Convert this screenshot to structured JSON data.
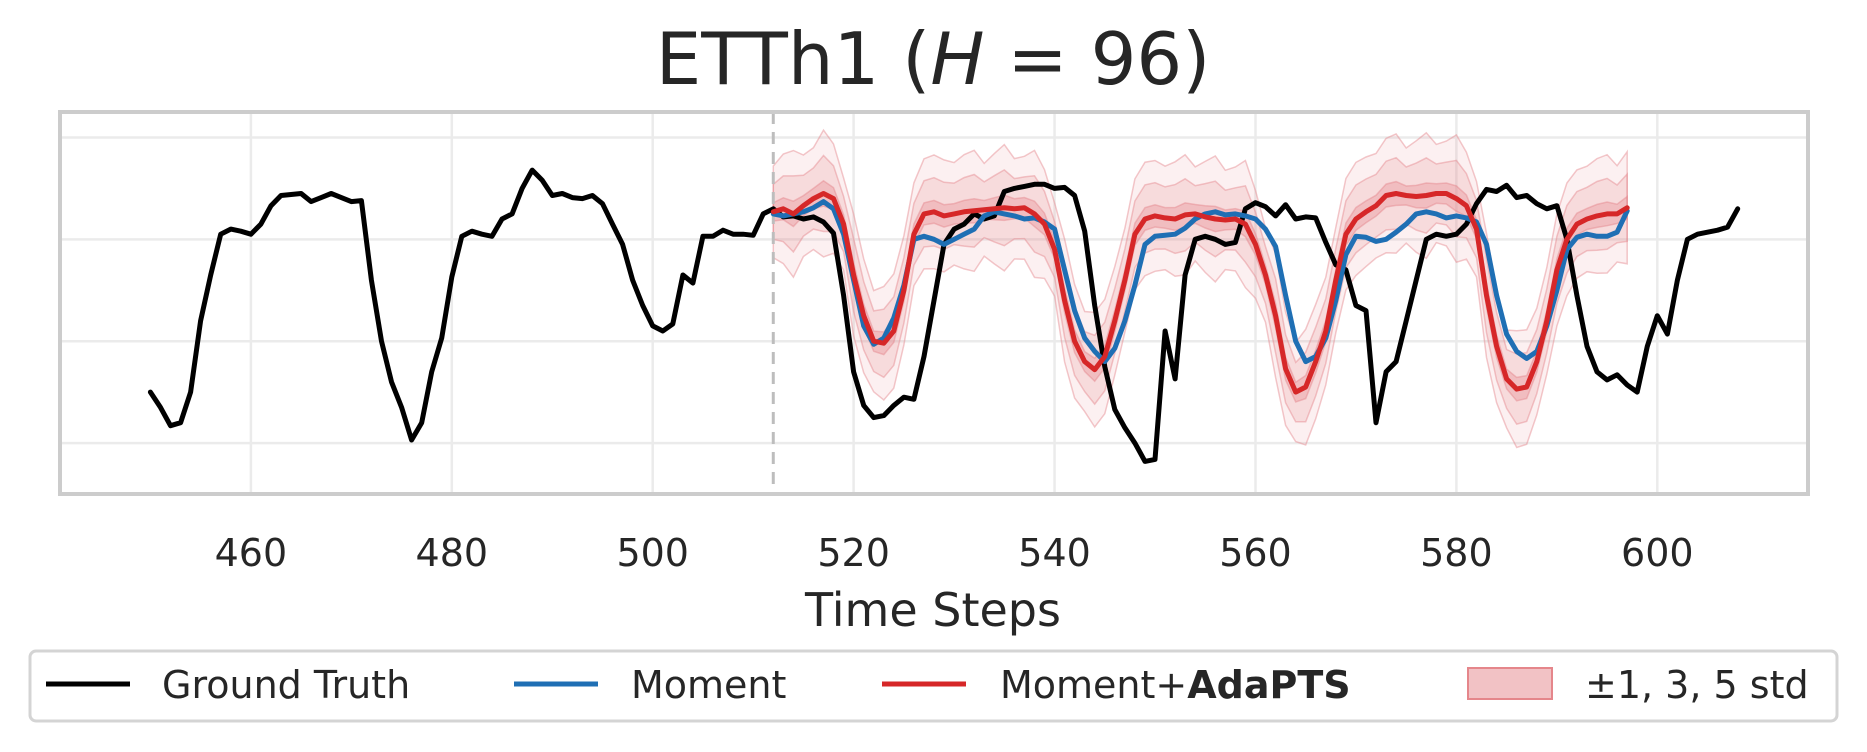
{
  "chart_data": {
    "type": "line",
    "title": "ETTh1 (H = 96)",
    "title_parts": {
      "prefix": "ETTh1 (",
      "var": "H",
      "suffix": " = 96)"
    },
    "xlabel": "Time Steps",
    "ylabel": "",
    "xlim": [
      441,
      615
    ],
    "ylim": [
      -0.15,
      3.6
    ],
    "xticks": [
      460,
      480,
      500,
      520,
      540,
      560,
      580,
      600
    ],
    "y_gridlines": [
      0.35,
      1.35,
      2.35,
      3.35
    ],
    "grid": true,
    "forecast_start": 512,
    "colors": {
      "ground_truth": "#000000",
      "moment": "#1f6fb4",
      "adapts": "#d62728",
      "band": "#e5868b",
      "grid": "#ebebeb",
      "frame": "#cccccc",
      "divider": "#bdbdbd"
    },
    "series": [
      {
        "name": "Ground Truth",
        "x_start": 450,
        "values": [
          0.85,
          0.7,
          0.52,
          0.55,
          0.85,
          1.55,
          2.0,
          2.4,
          2.45,
          2.43,
          2.4,
          2.5,
          2.68,
          2.78,
          2.79,
          2.8,
          2.72,
          2.76,
          2.8,
          2.76,
          2.72,
          2.73,
          1.95,
          1.35,
          0.95,
          0.7,
          0.38,
          0.55,
          1.05,
          1.38,
          1.98,
          2.38,
          2.43,
          2.4,
          2.38,
          2.55,
          2.6,
          2.85,
          3.03,
          2.93,
          2.78,
          2.8,
          2.76,
          2.75,
          2.78,
          2.7,
          2.5,
          2.3,
          1.95,
          1.7,
          1.5,
          1.45,
          1.52,
          2.0,
          1.92,
          2.38,
          2.38,
          2.44,
          2.4,
          2.4,
          2.39,
          2.6,
          2.65,
          2.57,
          2.58,
          2.55,
          2.57,
          2.52,
          2.41,
          1.8,
          1.05,
          0.72,
          0.6,
          0.62,
          0.72,
          0.8,
          0.78,
          1.2,
          1.75,
          2.3,
          2.45,
          2.5,
          2.6,
          2.55,
          2.58,
          2.82,
          2.85,
          2.87,
          2.89,
          2.89,
          2.85,
          2.86,
          2.78,
          2.43,
          1.7,
          1.1,
          0.68,
          0.5,
          0.35,
          0.17,
          0.19,
          1.45,
          0.98,
          2.0,
          2.35,
          2.38,
          2.35,
          2.3,
          2.32,
          2.65,
          2.71,
          2.67,
          2.58,
          2.69,
          2.55,
          2.57,
          2.56,
          2.32,
          2.1,
          2.05,
          1.7,
          1.65,
          0.55,
          1.05,
          1.15,
          1.55,
          1.95,
          2.35,
          2.4,
          2.38,
          2.4,
          2.5,
          2.7,
          2.84,
          2.82,
          2.88,
          2.76,
          2.78,
          2.7,
          2.65,
          2.68,
          2.35,
          1.8,
          1.3,
          1.05,
          0.97,
          1.02,
          0.92,
          0.85,
          1.3,
          1.6,
          1.42,
          1.95,
          2.35,
          2.4,
          2.42,
          2.44,
          2.47,
          2.65
        ]
      },
      {
        "name": "Moment",
        "x_start": 512,
        "values": [
          2.6,
          2.58,
          2.6,
          2.62,
          2.66,
          2.72,
          2.65,
          2.4,
          1.95,
          1.5,
          1.32,
          1.38,
          1.58,
          1.9,
          2.35,
          2.38,
          2.35,
          2.3,
          2.35,
          2.4,
          2.45,
          2.58,
          2.62,
          2.6,
          2.58,
          2.55,
          2.56,
          2.52,
          2.45,
          2.05,
          1.65,
          1.38,
          1.25,
          1.15,
          1.28,
          1.55,
          1.9,
          2.3,
          2.38,
          2.39,
          2.4,
          2.46,
          2.55,
          2.6,
          2.62,
          2.59,
          2.6,
          2.58,
          2.55,
          2.45,
          2.28,
          1.8,
          1.35,
          1.15,
          1.2,
          1.38,
          1.75,
          2.2,
          2.38,
          2.37,
          2.33,
          2.35,
          2.42,
          2.5,
          2.6,
          2.62,
          2.6,
          2.56,
          2.58,
          2.56,
          2.52,
          2.3,
          1.8,
          1.42,
          1.25,
          1.18,
          1.25,
          1.5,
          1.85,
          2.25,
          2.37,
          2.4,
          2.38,
          2.38,
          2.42,
          2.63
        ]
      },
      {
        "name": "Moment+AdaPTS",
        "x_start": 512,
        "values": [
          2.62,
          2.65,
          2.6,
          2.68,
          2.75,
          2.8,
          2.75,
          2.5,
          2.0,
          1.6,
          1.35,
          1.33,
          1.45,
          1.85,
          2.4,
          2.6,
          2.62,
          2.58,
          2.6,
          2.62,
          2.63,
          2.64,
          2.65,
          2.66,
          2.65,
          2.66,
          2.6,
          2.5,
          2.25,
          1.75,
          1.35,
          1.15,
          1.07,
          1.2,
          1.55,
          1.95,
          2.4,
          2.55,
          2.58,
          2.56,
          2.55,
          2.59,
          2.6,
          2.57,
          2.55,
          2.54,
          2.55,
          2.5,
          2.3,
          2.0,
          1.6,
          1.08,
          0.85,
          0.9,
          1.15,
          1.45,
          1.95,
          2.4,
          2.55,
          2.62,
          2.68,
          2.78,
          2.8,
          2.78,
          2.77,
          2.78,
          2.8,
          2.8,
          2.75,
          2.68,
          2.45,
          1.8,
          1.3,
          0.98,
          0.88,
          0.9,
          1.15,
          1.55,
          2.05,
          2.35,
          2.5,
          2.55,
          2.58,
          2.6,
          2.6,
          2.66
        ]
      }
    ],
    "band_std": [
      0.09,
      0.09,
      0.1
    ],
    "legend": {
      "placement": "bottom",
      "items": [
        {
          "label": "Ground Truth",
          "swatch": "line",
          "color": "#000000"
        },
        {
          "label": "Moment",
          "swatch": "line",
          "color": "#1f6fb4"
        },
        {
          "label_prefix": "Moment+",
          "label_bold": "AdaPTS",
          "swatch": "line",
          "color": "#d62728"
        },
        {
          "label": "±1, 3, 5 std",
          "swatch": "band",
          "color": "#e5868b"
        }
      ]
    }
  }
}
